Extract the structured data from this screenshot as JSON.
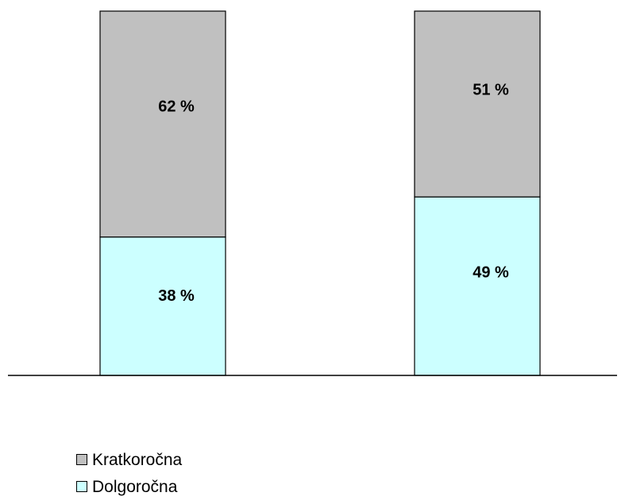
{
  "chart_data": {
    "type": "bar",
    "stacked": true,
    "percent_stacked": true,
    "categories": [
      "",
      ""
    ],
    "series": [
      {
        "name": "Dolgoročna",
        "values": [
          38,
          49
        ],
        "labels": [
          "38 %",
          "49 %"
        ],
        "color": "#ccffff"
      },
      {
        "name": "Kratkoročna",
        "values": [
          62,
          51
        ],
        "labels": [
          "62 %",
          "51 %"
        ],
        "color": "#c0c0c0"
      }
    ],
    "ylim": [
      0,
      100
    ],
    "title": "",
    "xlabel": "",
    "ylabel": "",
    "grid": false,
    "legend_position": "bottom-left",
    "legend": [
      {
        "label": "Kratkoročna",
        "color": "#c0c0c0"
      },
      {
        "label": "Dolgoročna",
        "color": "#ccffff"
      }
    ]
  }
}
